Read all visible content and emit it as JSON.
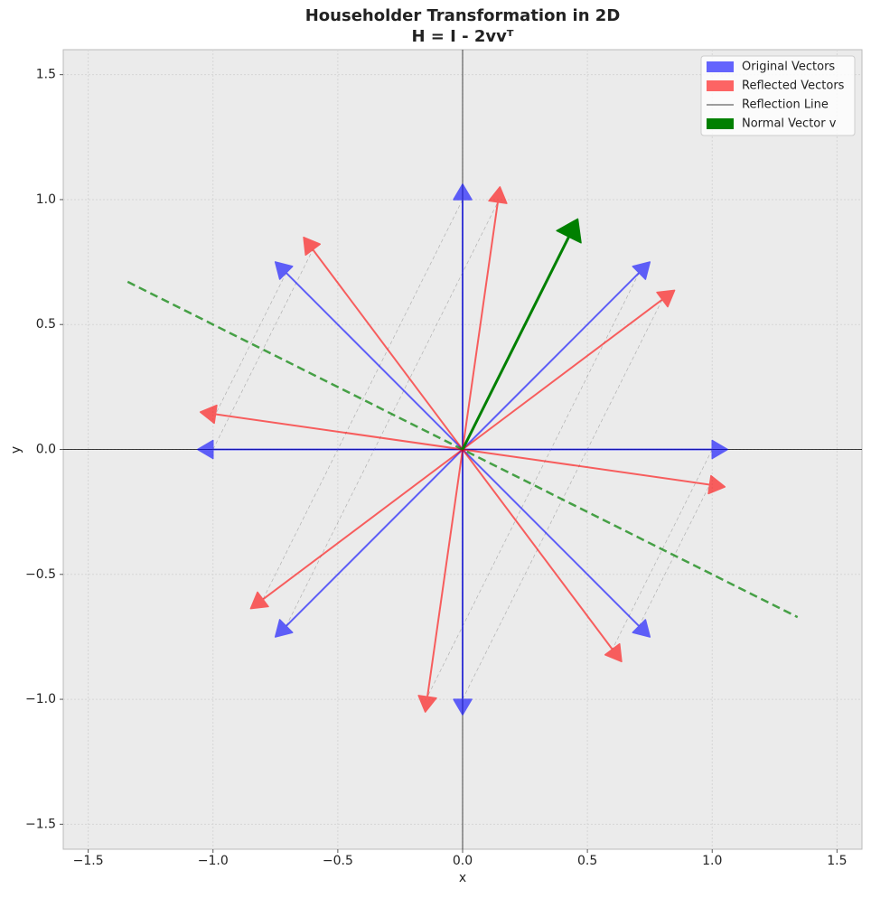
{
  "chart_data": {
    "type": "quiver",
    "title": "Householder Transformation in 2D",
    "subtitle": "H = I - 2vvᵀ",
    "x_label": "x",
    "y_label": "y",
    "xlim": [
      -1.6,
      1.6
    ],
    "ylim": [
      -1.6,
      1.6
    ],
    "xticks": [
      {
        "value": -1.5,
        "label": "−1.5"
      },
      {
        "value": -1,
        "label": "−1.0"
      },
      {
        "value": -0.5,
        "label": "−0.5"
      },
      {
        "value": 0,
        "label": "0.0"
      },
      0.5,
      {
        "value": 1,
        "label": "1.0"
      },
      1.5
    ],
    "yticks": [
      {
        "value": -1.5,
        "label": "−1.5"
      },
      {
        "value": -1,
        "label": "−1.0"
      },
      {
        "value": -0.5,
        "label": "−0.5"
      },
      {
        "value": 0,
        "label": "0.0"
      },
      0.5,
      {
        "value": 1,
        "label": "1.0"
      },
      1.5
    ],
    "grid": true,
    "legend": "upper right",
    "series": [
      {
        "name": "Original Vectors",
        "kind": "arrow",
        "color": "#0000ff",
        "alpha": 0.6,
        "u": [
          1,
          0.707,
          0,
          -0.707,
          -1,
          -0.707,
          0,
          0.707
        ],
        "v": [
          0,
          0.707,
          1,
          0.707,
          0,
          -0.707,
          -1,
          -0.707
        ]
      },
      {
        "name": "Reflected Vectors",
        "kind": "arrow",
        "color": "#ff0000",
        "alpha": 0.6,
        "u": [
          0.6,
          -0.141,
          -0.8,
          -0.99,
          -0.6,
          0.141,
          0.8,
          0.99
        ],
        "v": [
          -0.8,
          -0.99,
          -0.6,
          0.141,
          0.8,
          0.99,
          0.6,
          -0.141
        ]
      },
      {
        "name": "Reflection Line",
        "kind": "line",
        "color": "#008000",
        "alpha": 0.7,
        "legend_color": "#000000",
        "x": [
          -1.342,
          1.342
        ],
        "y": [
          0.671,
          -0.671
        ]
      },
      {
        "name": "Normal Vector v",
        "kind": "arrow",
        "color": "#008000",
        "alpha": 1,
        "u": [
          0.447
        ],
        "v": [
          0.894
        ]
      }
    ]
  }
}
